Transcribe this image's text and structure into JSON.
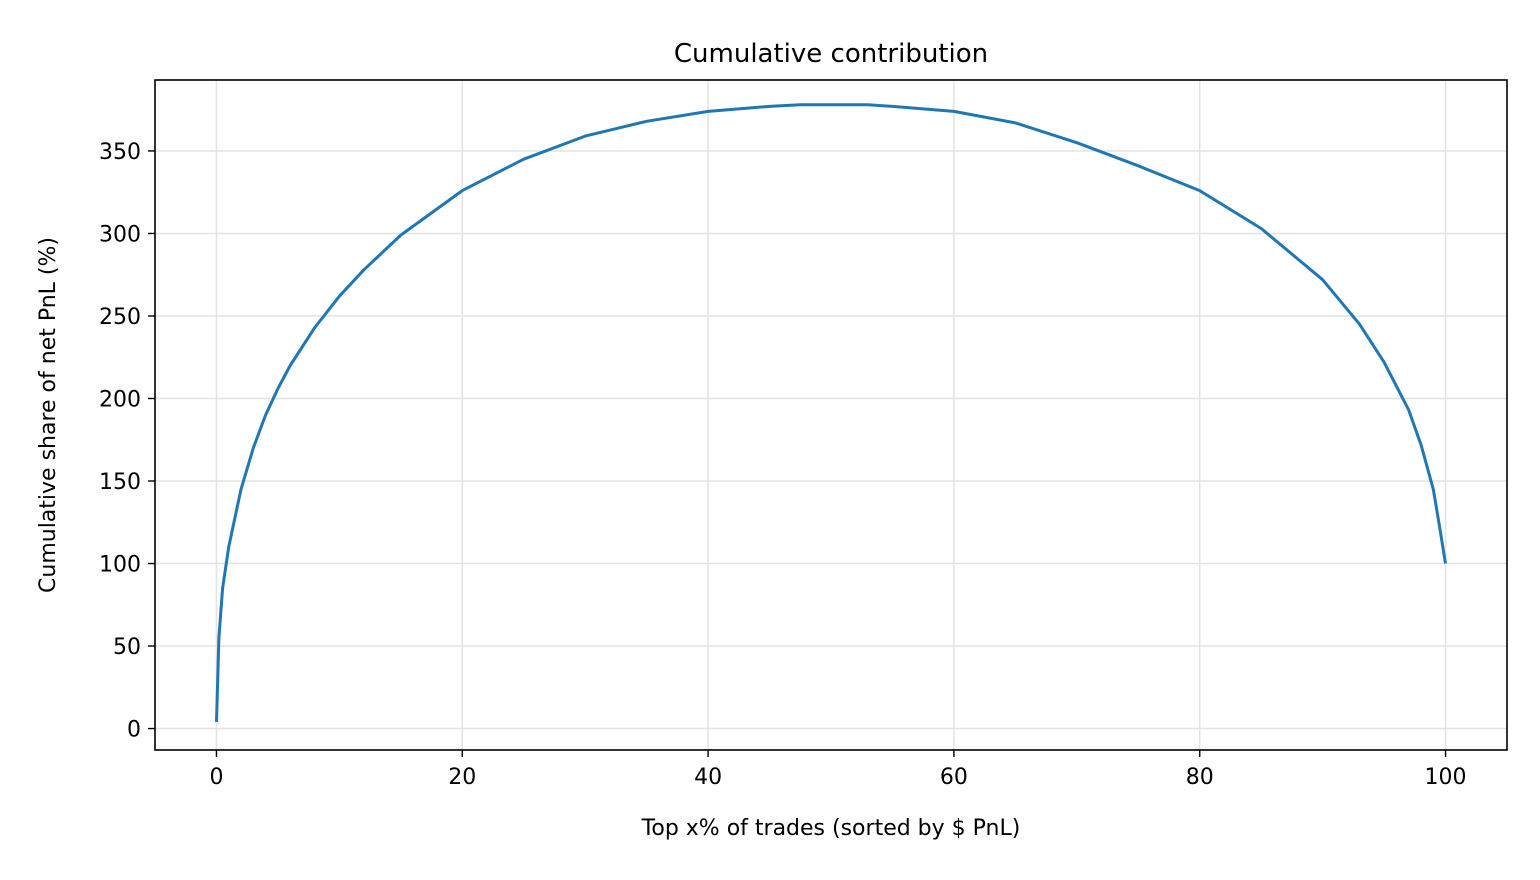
{
  "chart_data": {
    "type": "line",
    "title": "Cumulative contribution",
    "xlabel": "Top x% of trades (sorted by $ PnL)",
    "ylabel": "Cumulative share of net PnL (%)",
    "xlim": [
      -5,
      105
    ],
    "ylim": [
      -13,
      393
    ],
    "xticks": [
      0,
      20,
      40,
      60,
      80,
      100
    ],
    "yticks": [
      0,
      50,
      100,
      150,
      200,
      250,
      300,
      350
    ],
    "grid": true,
    "line_color": "#1f77b4",
    "series": [
      {
        "x": [
          0,
          0.2,
          0.5,
          1,
          2,
          3,
          4,
          5,
          6,
          8,
          10,
          12,
          15,
          20,
          25,
          30,
          35,
          40,
          45,
          47.5,
          50,
          53,
          55,
          60,
          65,
          70,
          75,
          80,
          85,
          90,
          93,
          95,
          97,
          98,
          99,
          99.5,
          100
        ],
        "values": [
          4,
          55,
          85,
          110,
          145,
          170,
          190,
          206,
          220,
          243,
          262,
          278,
          299,
          326,
          345,
          359,
          368,
          374,
          377,
          378,
          378,
          378,
          377,
          374,
          367,
          355,
          341,
          326,
          303,
          272,
          245,
          222,
          193,
          172,
          145,
          123,
          100
        ]
      }
    ]
  }
}
